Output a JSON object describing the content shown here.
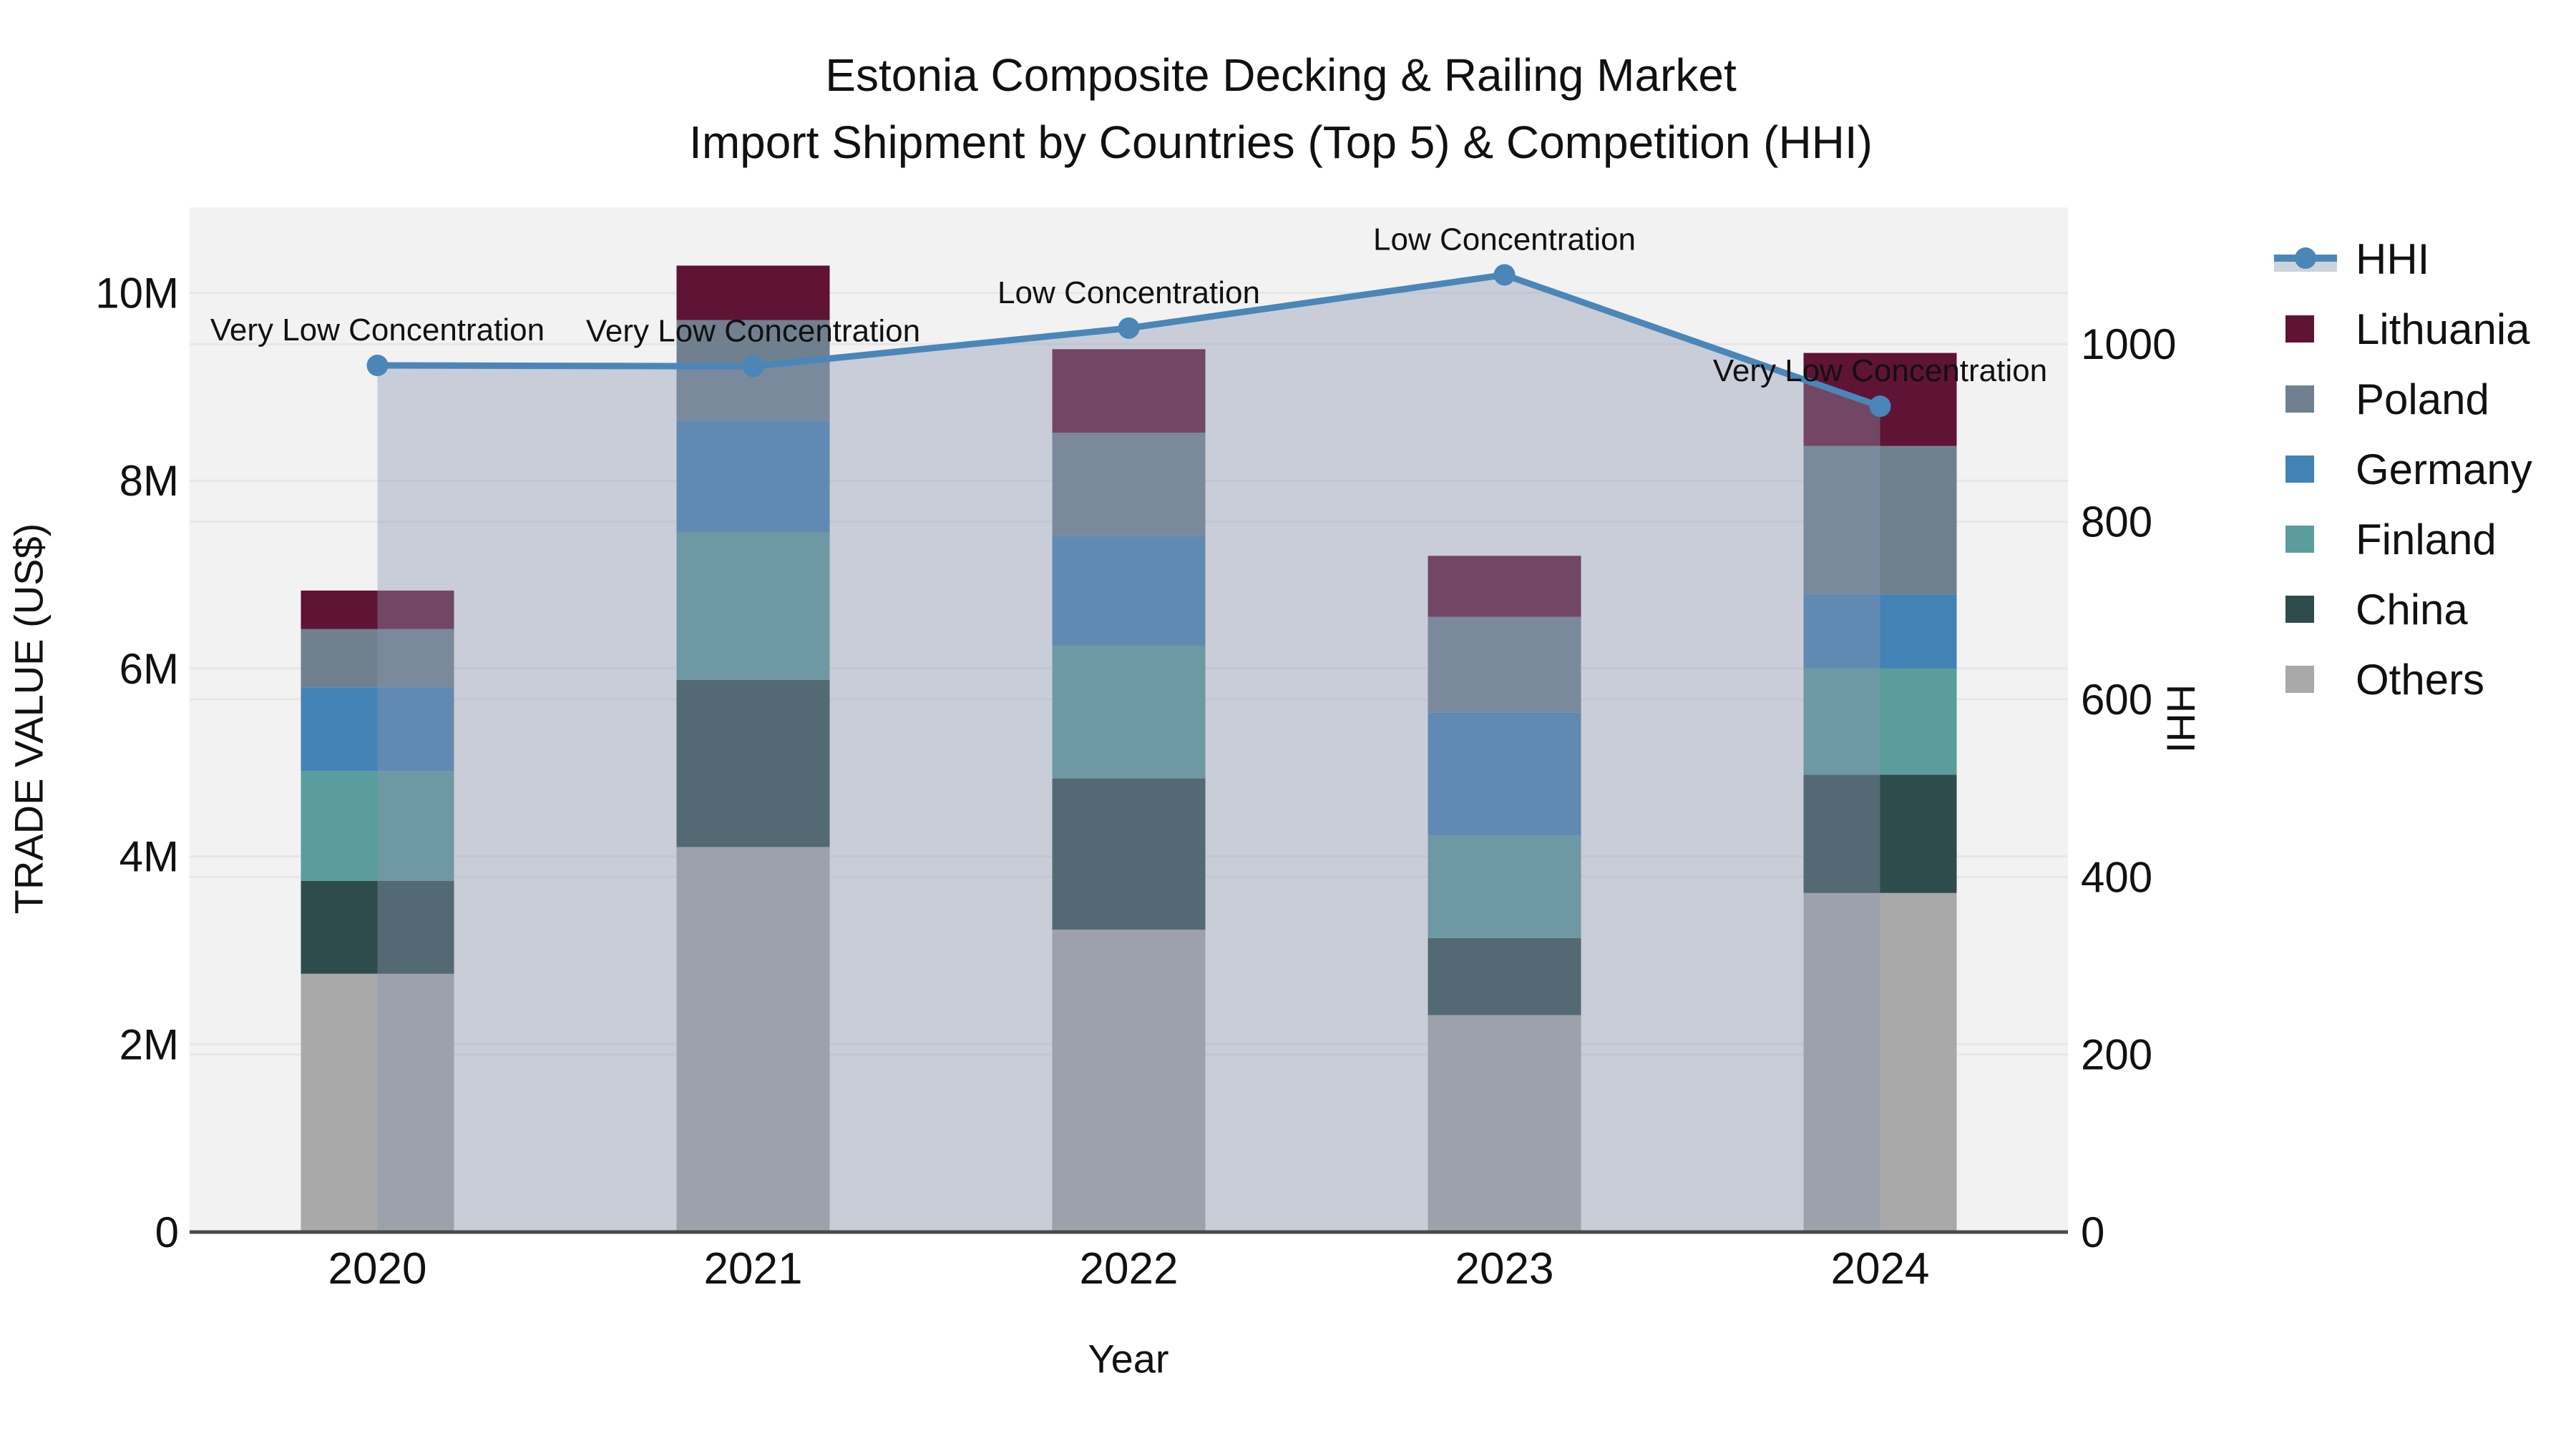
{
  "title": {
    "line1": "Estonia Composite Decking & Railing Market",
    "line2": "Import Shipment by Countries (Top 5) & Competition (HHI)"
  },
  "axes": {
    "left": {
      "title": "TRADE VALUE (US$)"
    },
    "right": {
      "title": "HHI"
    },
    "x": {
      "title": "Year"
    }
  },
  "legend": {
    "items": [
      {
        "label": "HHI",
        "symbol": "line-marker",
        "color": "#4a86b8"
      },
      {
        "label": "Lithuania",
        "symbol": "square",
        "color": "#5f1335"
      },
      {
        "label": "Poland",
        "symbol": "square",
        "color": "#71808f"
      },
      {
        "label": "Germany",
        "symbol": "square",
        "color": "#4382b5"
      },
      {
        "label": "Finland",
        "symbol": "square",
        "color": "#5b9c9d"
      },
      {
        "label": "China",
        "symbol": "square",
        "color": "#2e4c4b"
      },
      {
        "label": "Others",
        "symbol": "square",
        "color": "#a9a9a9"
      }
    ]
  },
  "annotations": [
    {
      "year": "2020",
      "text": "Very Low Concentration"
    },
    {
      "year": "2021",
      "text": "Very Low Concentration"
    },
    {
      "year": "2022",
      "text": "Low Concentration"
    },
    {
      "year": "2023",
      "text": "Low Concentration"
    },
    {
      "year": "2024",
      "text": "Very Low Concentration"
    }
  ],
  "colors": {
    "plot_background": "#f2f2f2",
    "gridline": "#e6e6e9",
    "axis_line": "#4a4a4a",
    "text": "#111111",
    "hhi_line": "#4a86b8",
    "area_fill": "rgba(140,150,175,0.4)"
  },
  "chart_data": {
    "type": "bar+line",
    "title": "Estonia Composite Decking & Railing Market — Import Shipment by Countries (Top 5) & Competition (HHI)",
    "xlabel": "Year",
    "ylabel": "TRADE VALUE (US$)",
    "y2label": "HHI",
    "categories": [
      "2020",
      "2021",
      "2022",
      "2023",
      "2024"
    ],
    "stack_order": "bottom_to_top",
    "series": [
      {
        "name": "Others",
        "color": "#a9a9a9",
        "values_musd": [
          2.75,
          4.1,
          3.22,
          2.31,
          3.61
        ]
      },
      {
        "name": "China",
        "color": "#2e4c4b",
        "values_musd": [
          0.99,
          1.78,
          1.61,
          0.82,
          1.26
        ]
      },
      {
        "name": "Finland",
        "color": "#5b9c9d",
        "values_musd": [
          1.17,
          1.57,
          1.41,
          1.09,
          1.13
        ]
      },
      {
        "name": "Germany",
        "color": "#4382b5",
        "values_musd": [
          0.89,
          1.19,
          1.17,
          1.31,
          0.79
        ]
      },
      {
        "name": "Poland",
        "color": "#71808f",
        "values_musd": [
          0.62,
          1.07,
          1.1,
          1.02,
          1.58
        ]
      },
      {
        "name": "Lithuania",
        "color": "#5f1335",
        "values_musd": [
          0.41,
          0.58,
          0.89,
          0.65,
          0.99
        ]
      }
    ],
    "bar_totals_musd": [
      6.83,
      10.29,
      9.4,
      7.2,
      9.36
    ],
    "line": {
      "name": "HHI",
      "color": "#4a86b8",
      "axis": "right",
      "values": [
        976,
        975,
        1018,
        1078,
        930
      ],
      "area_fill": true
    },
    "ylim_usd": [
      0,
      10910000
    ],
    "y2lim": [
      0,
      1154
    ],
    "yticks": [
      "0",
      "2M",
      "4M",
      "6M",
      "8M",
      "10M"
    ],
    "ytick_values_usd": [
      0,
      2000000,
      4000000,
      6000000,
      8000000,
      10000000
    ],
    "y2ticks": [
      "0",
      "200",
      "400",
      "600",
      "800",
      "1000"
    ],
    "y2tick_values": [
      0,
      200,
      400,
      600,
      800,
      1000
    ],
    "grid": true,
    "legend_position": "right"
  }
}
